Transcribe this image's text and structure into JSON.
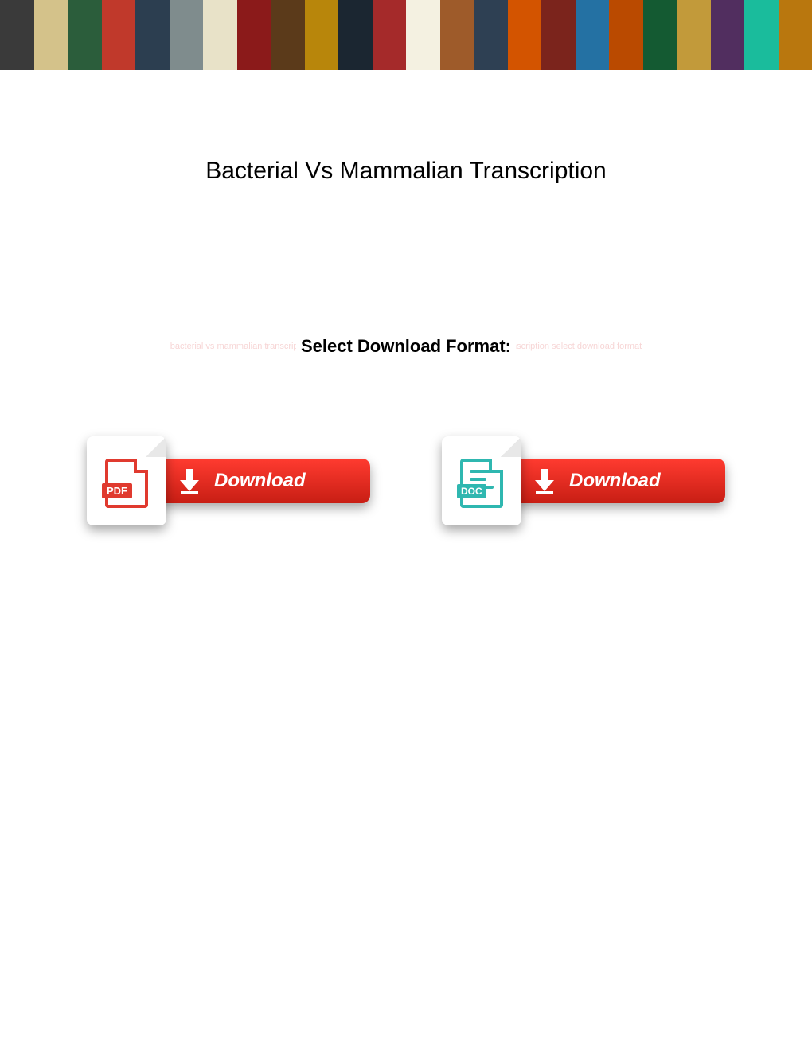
{
  "banner": {
    "tile_colors": [
      "#3a3a3a",
      "#d4c28a",
      "#2b5d3b",
      "#c0392b",
      "#2c3e50",
      "#7f8c8d",
      "#e8e2c8",
      "#8b1a1a",
      "#5b3a1a",
      "#b8860b",
      "#1b2631",
      "#a52a2a",
      "#f4f1e1",
      "#9e5b2a",
      "#2e4053",
      "#d35400",
      "#7b241c",
      "#2471a3",
      "#ba4a00",
      "#145a32",
      "#c29a3a",
      "#512e5f",
      "#1abc9c",
      "#b9770e"
    ]
  },
  "title": "Bacterial Vs Mammalian Transcription",
  "select_format": {
    "label": "Select Download Format:",
    "faded_text": "bacterial vs mammalian transcription select download format bacterial vs mammalian transcription select download format"
  },
  "downloads": {
    "pdf": {
      "format_label": "PDF",
      "button_label": "Download",
      "icon_color": "#e03a2f",
      "badge_color": "#e03a2f"
    },
    "doc": {
      "format_label": "DOC",
      "button_label": "Download",
      "icon_color": "#2fb7b0",
      "badge_color": "#2fb7b0"
    },
    "button": {
      "bg_gradient_top": "#ff3b30",
      "bg_gradient_bottom": "#c81e14",
      "text_color": "#ffffff"
    }
  }
}
